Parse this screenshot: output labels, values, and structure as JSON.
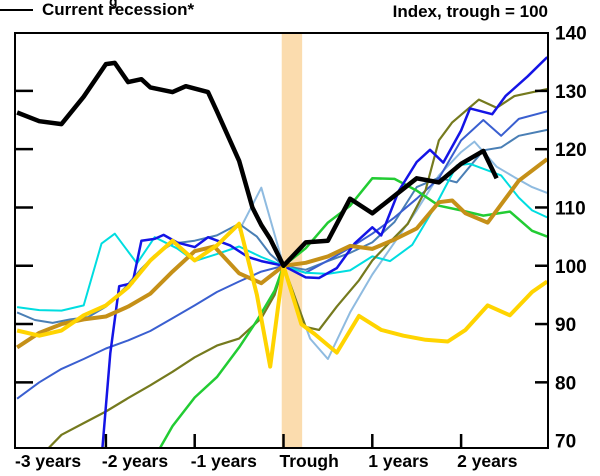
{
  "figure_fragment": "g",
  "header": {
    "title": "Index, trough = 100"
  },
  "legend": {
    "label": "Current recession*",
    "line_color": "#000000"
  },
  "colors": {
    "background": "#ffffff",
    "axis": "#000000",
    "trough_band": "#fbdcae"
  },
  "chart_data": {
    "type": "line",
    "title": "Index, trough = 100",
    "xlabel": "",
    "ylabel": "Index, trough = 100",
    "x_axis": {
      "labels": [
        "-3 years",
        "-2 years",
        "-1 years",
        "Trough",
        "1 years",
        "2 years"
      ],
      "tick_positions_years": [
        -3,
        -2,
        -1,
        0,
        1,
        2
      ],
      "range_years": [
        -3,
        3
      ]
    },
    "y_axis": {
      "ticks": [
        70,
        80,
        90,
        100,
        110,
        120,
        130,
        140
      ],
      "inner_tick_levels": [
        80,
        90,
        100,
        110,
        120,
        130
      ],
      "range": [
        70,
        140
      ],
      "side": "right"
    },
    "trough_band": {
      "from_years": -0.02,
      "to_years": 0.21,
      "color": "#fbdcae"
    },
    "grid": false,
    "legend": {
      "position": "top-left-inside",
      "entries": [
        {
          "label": "Current recession*",
          "color": "#000000"
        }
      ]
    },
    "series": [
      {
        "name": "light-blue-recession",
        "color": "#8fbbe0",
        "width": 2,
        "points": [
          [
            -0.5,
            106
          ],
          [
            -0.25,
            113.4
          ],
          [
            0,
            100
          ],
          [
            0.3,
            87.5
          ],
          [
            0.5,
            84
          ],
          [
            0.75,
            92
          ],
          [
            1,
            98.5
          ],
          [
            1.25,
            104
          ],
          [
            1.5,
            109.5
          ],
          [
            1.75,
            115.5
          ],
          [
            2,
            119.5
          ],
          [
            2.15,
            121.3
          ],
          [
            2.4,
            117
          ],
          [
            2.6,
            115.2
          ],
          [
            2.8,
            113.5
          ],
          [
            2.97,
            112.5
          ]
        ]
      },
      {
        "name": "steel-blue-recession",
        "color": "#4a7fb5",
        "width": 2,
        "points": [
          [
            -3,
            92
          ],
          [
            -2.8,
            90.7
          ],
          [
            -2.6,
            90.2
          ],
          [
            -2.4,
            90.8
          ],
          [
            -2.2,
            91.2
          ],
          [
            -2,
            93
          ],
          [
            -1.8,
            96
          ],
          [
            -1.6,
            99.5
          ],
          [
            -1.45,
            101.8
          ],
          [
            -1.25,
            103.8
          ],
          [
            -1,
            104.3
          ],
          [
            -0.75,
            105.2
          ],
          [
            -0.5,
            107.2
          ],
          [
            -0.3,
            105
          ],
          [
            -0.15,
            102
          ],
          [
            0,
            100
          ],
          [
            0.25,
            99.3
          ],
          [
            0.5,
            100.8
          ],
          [
            0.75,
            102.2
          ],
          [
            1,
            104
          ],
          [
            1.25,
            107.5
          ],
          [
            1.5,
            113.5
          ],
          [
            1.75,
            115.1
          ],
          [
            1.95,
            114.3
          ],
          [
            2.25,
            119.8
          ],
          [
            2.45,
            120.3
          ],
          [
            2.65,
            122.3
          ],
          [
            2.97,
            123.3
          ]
        ]
      },
      {
        "name": "royal-blue-recession",
        "color": "#3a5fd0",
        "width": 2,
        "points": [
          [
            -3,
            77.2
          ],
          [
            -2.75,
            80
          ],
          [
            -2.5,
            82.3
          ],
          [
            -2.25,
            84
          ],
          [
            -2,
            85.8
          ],
          [
            -1.75,
            87.2
          ],
          [
            -1.5,
            88.8
          ],
          [
            -1.25,
            91
          ],
          [
            -1,
            93.2
          ],
          [
            -0.75,
            95.5
          ],
          [
            -0.5,
            97.3
          ],
          [
            -0.25,
            99
          ],
          [
            0,
            100
          ],
          [
            0.25,
            98.8
          ],
          [
            0.5,
            100.9
          ],
          [
            0.75,
            103.1
          ],
          [
            1,
            105.5
          ],
          [
            1.25,
            108.3
          ],
          [
            1.5,
            111.5
          ],
          [
            1.75,
            115
          ],
          [
            2,
            121.5
          ],
          [
            2.25,
            125
          ],
          [
            2.45,
            122.3
          ],
          [
            2.65,
            125.2
          ],
          [
            2.97,
            126.5
          ]
        ]
      },
      {
        "name": "cyan-recession",
        "color": "#00dde0",
        "width": 2,
        "points": [
          [
            -3,
            92.9
          ],
          [
            -2.75,
            92.4
          ],
          [
            -2.5,
            92.3
          ],
          [
            -2.25,
            93.2
          ],
          [
            -2.05,
            103.8
          ],
          [
            -1.9,
            105.5
          ],
          [
            -1.65,
            100.4
          ],
          [
            -1.45,
            104.9
          ],
          [
            -1.2,
            103
          ],
          [
            -1,
            100.8
          ],
          [
            -0.75,
            102
          ],
          [
            -0.5,
            103.3
          ],
          [
            -0.25,
            101.5
          ],
          [
            0,
            100
          ],
          [
            0.25,
            98.8
          ],
          [
            0.5,
            98.6
          ],
          [
            0.75,
            99.2
          ],
          [
            1,
            101.6
          ],
          [
            1.2,
            100.8
          ],
          [
            1.45,
            103.6
          ],
          [
            1.7,
            110
          ],
          [
            1.95,
            117.2
          ],
          [
            2.1,
            117.5
          ],
          [
            2.45,
            115.5
          ],
          [
            2.65,
            111.7
          ],
          [
            2.8,
            109.5
          ],
          [
            2.97,
            108.3
          ]
        ]
      },
      {
        "name": "olive-recession",
        "color": "#757a1e",
        "width": 2.2,
        "points": [
          [
            -2.66,
            68.5
          ],
          [
            -2.5,
            71
          ],
          [
            -2.25,
            73
          ],
          [
            -2,
            75
          ],
          [
            -1.75,
            77.3
          ],
          [
            -1.5,
            79.5
          ],
          [
            -1.25,
            81.8
          ],
          [
            -1,
            84.3
          ],
          [
            -0.75,
            86.3
          ],
          [
            -0.5,
            87.5
          ],
          [
            -0.25,
            91
          ],
          [
            -0.1,
            95
          ],
          [
            0,
            100
          ],
          [
            0.25,
            89.5
          ],
          [
            0.4,
            89
          ],
          [
            0.6,
            93
          ],
          [
            0.85,
            97.5
          ],
          [
            1,
            100.9
          ],
          [
            1.2,
            104.1
          ],
          [
            1.4,
            107.2
          ],
          [
            1.6,
            113
          ],
          [
            1.75,
            121.5
          ],
          [
            1.9,
            124.6
          ],
          [
            2.2,
            128.5
          ],
          [
            2.4,
            127.1
          ],
          [
            2.6,
            129.1
          ],
          [
            2.97,
            130.3
          ]
        ]
      },
      {
        "name": "green-recession",
        "color": "#22cc33",
        "width": 2.5,
        "points": [
          [
            -1.4,
            68.5
          ],
          [
            -1.25,
            72.5
          ],
          [
            -1,
            77.4
          ],
          [
            -0.75,
            80.9
          ],
          [
            -0.5,
            86
          ],
          [
            -0.3,
            90.6
          ],
          [
            -0.1,
            95.7
          ],
          [
            0,
            100
          ],
          [
            0.25,
            103
          ],
          [
            0.5,
            107.4
          ],
          [
            0.75,
            110.3
          ],
          [
            1,
            115
          ],
          [
            1.25,
            114.9
          ],
          [
            1.5,
            112.9
          ],
          [
            1.75,
            110.3
          ],
          [
            2,
            109.5
          ],
          [
            2.25,
            108.6
          ],
          [
            2.55,
            109.3
          ],
          [
            2.8,
            106
          ],
          [
            2.97,
            105
          ]
        ]
      },
      {
        "name": "blue-recession",
        "color": "#1414e6",
        "width": 2.5,
        "points": [
          [
            -2.04,
            68.5
          ],
          [
            -1.95,
            85
          ],
          [
            -1.85,
            96.5
          ],
          [
            -1.7,
            97
          ],
          [
            -1.6,
            104.3
          ],
          [
            -1.45,
            104.6
          ],
          [
            -1.35,
            105.3
          ],
          [
            -1.2,
            104
          ],
          [
            -1,
            103.2
          ],
          [
            -0.85,
            104.9
          ],
          [
            -0.6,
            103.5
          ],
          [
            -0.4,
            101.5
          ],
          [
            -0.25,
            100.8
          ],
          [
            0,
            100
          ],
          [
            0.25,
            98
          ],
          [
            0.4,
            97.9
          ],
          [
            0.6,
            99.6
          ],
          [
            0.8,
            103.8
          ],
          [
            1,
            106.6
          ],
          [
            1.1,
            105.2
          ],
          [
            1.3,
            112.9
          ],
          [
            1.5,
            117.8
          ],
          [
            1.65,
            119.9
          ],
          [
            1.8,
            117.7
          ],
          [
            2,
            123.2
          ],
          [
            2.1,
            127
          ],
          [
            2.35,
            126
          ],
          [
            2.5,
            129.1
          ],
          [
            2.75,
            132.5
          ],
          [
            2.97,
            135.8
          ]
        ]
      },
      {
        "name": "dark-goldenrod-recession",
        "color": "#c59018",
        "width": 4,
        "points": [
          [
            -3,
            86
          ],
          [
            -2.75,
            88.5
          ],
          [
            -2.5,
            90
          ],
          [
            -2.25,
            90.8
          ],
          [
            -2,
            91.3
          ],
          [
            -1.75,
            93
          ],
          [
            -1.5,
            95.2
          ],
          [
            -1.25,
            99
          ],
          [
            -1,
            102.5
          ],
          [
            -0.78,
            103.3
          ],
          [
            -0.5,
            98.7
          ],
          [
            -0.25,
            97
          ],
          [
            0,
            100
          ],
          [
            0.25,
            100.5
          ],
          [
            0.5,
            101.6
          ],
          [
            0.75,
            103.4
          ],
          [
            1,
            102.9
          ],
          [
            1.25,
            104.5
          ],
          [
            1.5,
            106.4
          ],
          [
            1.75,
            110.9
          ],
          [
            1.9,
            111.2
          ],
          [
            2.05,
            109
          ],
          [
            2.3,
            107.4
          ],
          [
            2.65,
            114.6
          ],
          [
            2.97,
            118.3
          ]
        ]
      },
      {
        "name": "yellow-recession",
        "color": "#ffd400",
        "width": 4,
        "points": [
          [
            -3,
            88.9
          ],
          [
            -2.75,
            88
          ],
          [
            -2.5,
            88.9
          ],
          [
            -2.25,
            91.5
          ],
          [
            -2,
            93.2
          ],
          [
            -1.75,
            96.3
          ],
          [
            -1.5,
            100.9
          ],
          [
            -1.25,
            104.3
          ],
          [
            -1,
            100.9
          ],
          [
            -0.75,
            103.5
          ],
          [
            -0.5,
            107.2
          ],
          [
            -0.3,
            95
          ],
          [
            -0.15,
            82.7
          ],
          [
            0,
            100
          ],
          [
            0.2,
            90
          ],
          [
            0.35,
            88.3
          ],
          [
            0.6,
            85.1
          ],
          [
            0.85,
            91.4
          ],
          [
            1.1,
            89
          ],
          [
            1.35,
            88
          ],
          [
            1.6,
            87.3
          ],
          [
            1.85,
            87
          ],
          [
            2.05,
            89
          ],
          [
            2.3,
            93.2
          ],
          [
            2.55,
            91.5
          ],
          [
            2.8,
            95.5
          ],
          [
            2.97,
            97.3
          ]
        ]
      },
      {
        "name": "current-recession",
        "color": "#000000",
        "width": 4.5,
        "points": [
          [
            -3,
            126.3
          ],
          [
            -2.75,
            124.8
          ],
          [
            -2.5,
            124.3
          ],
          [
            -2.25,
            129
          ],
          [
            -2,
            134.6
          ],
          [
            -1.9,
            134.8
          ],
          [
            -1.75,
            131.5
          ],
          [
            -1.6,
            132
          ],
          [
            -1.5,
            130.6
          ],
          [
            -1.25,
            129.8
          ],
          [
            -1.1,
            130.8
          ],
          [
            -1,
            130.4
          ],
          [
            -0.85,
            129.8
          ],
          [
            -0.75,
            126.5
          ],
          [
            -0.5,
            118
          ],
          [
            -0.35,
            110
          ],
          [
            -0.25,
            107
          ],
          [
            -0.15,
            104.6
          ],
          [
            0,
            100
          ],
          [
            0.25,
            104
          ],
          [
            0.5,
            104.3
          ],
          [
            0.75,
            111.5
          ],
          [
            1,
            109
          ],
          [
            1.25,
            112
          ],
          [
            1.5,
            115
          ],
          [
            1.75,
            114.3
          ],
          [
            2,
            117.5
          ],
          [
            2.25,
            119.7
          ],
          [
            2.4,
            115
          ]
        ]
      }
    ]
  }
}
